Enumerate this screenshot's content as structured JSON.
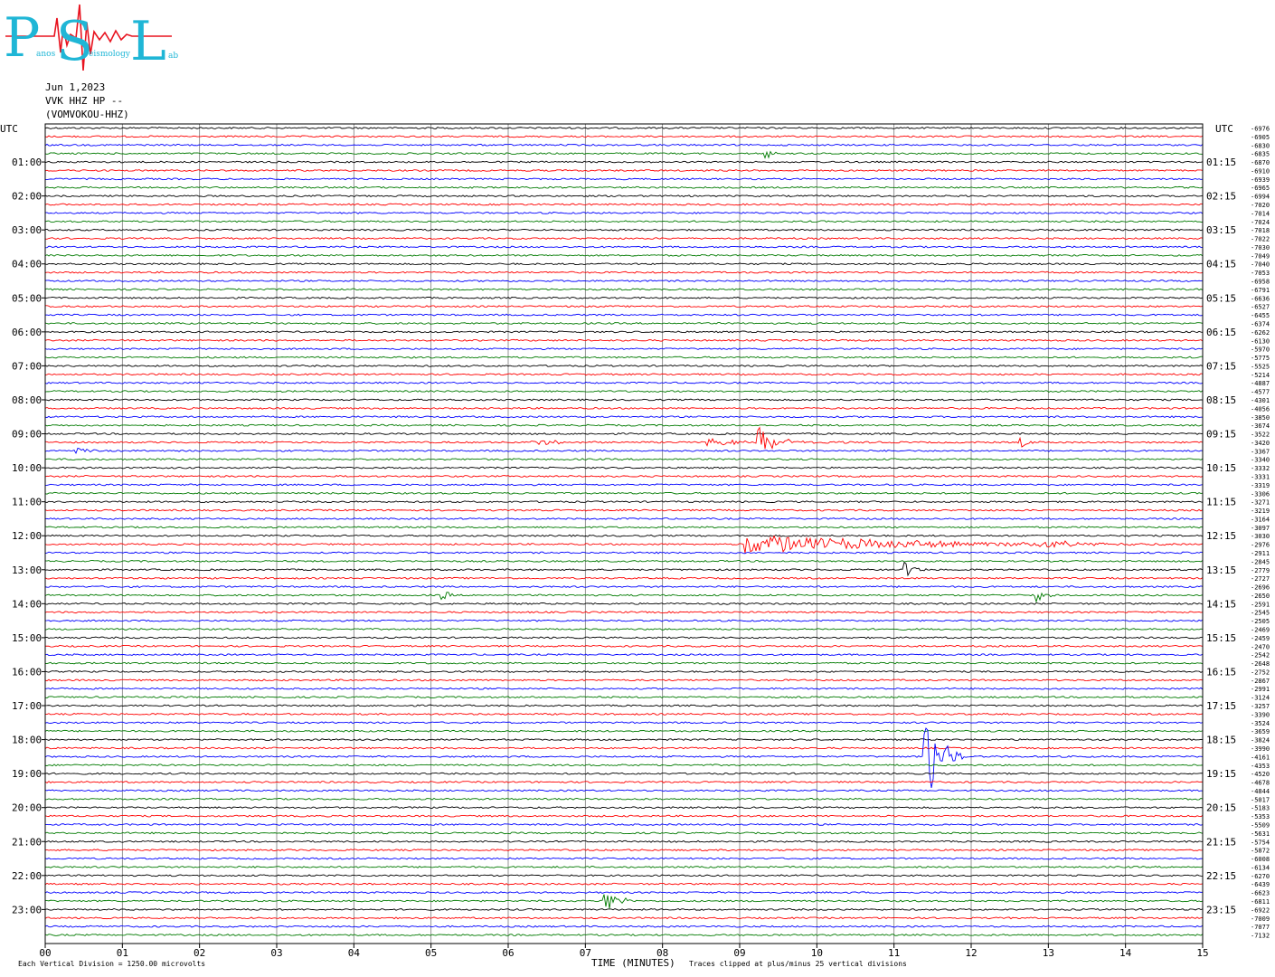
{
  "header": {
    "logo_letters": [
      "P",
      "S",
      "L"
    ],
    "logo_words": [
      "anos",
      "eismology",
      "ab"
    ],
    "date": "Jun 1,2023",
    "station": "VVK HHZ HP --",
    "station_name": "(VOMVOKOU-HHZ)"
  },
  "colors": {
    "black": "#000000",
    "red": "#ff0000",
    "blue": "#0000ff",
    "green": "#007a00",
    "logo_cyan": "#1fb6d6",
    "logo_red": "#e8131f"
  },
  "footer": {
    "scale_note": "Each Vertical Division = 1250.00 microvolts",
    "clip_note": "Traces clipped at plus/minus 25 vertical divisions"
  },
  "chart_data": {
    "type": "line",
    "title": "",
    "xlabel": "TIME (MINUTES)",
    "ylabel_left": "UTC",
    "ylabel_right": "UTC",
    "xlim": [
      0,
      15
    ],
    "x_ticks": [
      "00",
      "01",
      "02",
      "03",
      "04",
      "05",
      "06",
      "07",
      "08",
      "09",
      "10",
      "11",
      "12",
      "13",
      "14",
      "15"
    ],
    "trace_count": 96,
    "trace_color_cycle": [
      "black",
      "red",
      "blue",
      "green"
    ],
    "left_hour_labels": [
      "01:00",
      "02:00",
      "03:00",
      "04:00",
      "05:00",
      "06:00",
      "07:00",
      "08:00",
      "09:00",
      "10:00",
      "11:00",
      "12:00",
      "13:00",
      "14:00",
      "15:00",
      "16:00",
      "17:00",
      "18:00",
      "19:00",
      "20:00",
      "21:00",
      "22:00",
      "23:00"
    ],
    "right_hour_labels": [
      "01:15",
      "02:15",
      "03:15",
      "04:15",
      "05:15",
      "06:15",
      "07:15",
      "08:15",
      "09:15",
      "10:15",
      "11:15",
      "12:15",
      "13:15",
      "14:15",
      "15:15",
      "16:15",
      "17:15",
      "18:15",
      "19:15",
      "20:15",
      "21:15",
      "22:15",
      "23:15"
    ],
    "trace_offsets": [
      -6976,
      -6905,
      -6830,
      -6835,
      -6870,
      -6910,
      -6939,
      -6965,
      -6994,
      -7020,
      -7014,
      -7024,
      -7018,
      -7022,
      -7030,
      -7049,
      -7040,
      -7053,
      -6958,
      -6791,
      -6636,
      -6527,
      -6455,
      -6374,
      -6262,
      -6130,
      -5970,
      -5775,
      -5525,
      -5214,
      -4887,
      -4577,
      -4301,
      -4056,
      -3850,
      -3674,
      -3522,
      -3420,
      -3367,
      -3340,
      -3332,
      -3331,
      -3319,
      -3306,
      -3271,
      -3219,
      -3164,
      -3097,
      -3030,
      -2976,
      -2911,
      -2845,
      -2779,
      -2727,
      -2696,
      -2650,
      -2591,
      -2545,
      -2505,
      -2469,
      -2459,
      -2470,
      -2542,
      -2648,
      -2752,
      -2867,
      -2991,
      -3124,
      -3257,
      -3390,
      -3524,
      -3659,
      -3824,
      -3990,
      -4161,
      -4353,
      -4520,
      -4678,
      -4844,
      -5017,
      -5183,
      -5353,
      -5509,
      -5631,
      -5754,
      -5872,
      -6008,
      -6134,
      -6270,
      -6439,
      -6623,
      -6811,
      -6922,
      -7009,
      -7077,
      -7132
    ],
    "events": [
      {
        "trace": 3,
        "minute": 9.35,
        "amplitude": 6,
        "duration": 0.2
      },
      {
        "trace": 37,
        "minute": 9.25,
        "amplitude": 18,
        "duration": 0.5
      },
      {
        "trace": 37,
        "minute": 6.3,
        "amplitude": 3,
        "duration": 1.2
      },
      {
        "trace": 37,
        "minute": 8.6,
        "amplitude": 4,
        "duration": 2.5
      },
      {
        "trace": 37,
        "minute": 12.65,
        "amplitude": 5,
        "duration": 0.3
      },
      {
        "trace": 38,
        "minute": 0.4,
        "amplitude": 3,
        "duration": 0.4
      },
      {
        "trace": 49,
        "minute": 9.1,
        "amplitude": 11,
        "duration": 5.5
      },
      {
        "trace": 49,
        "minute": 12.9,
        "amplitude": 6,
        "duration": 1.0
      },
      {
        "trace": 52,
        "minute": 11.15,
        "amplitude": 9,
        "duration": 0.3
      },
      {
        "trace": 55,
        "minute": 5.15,
        "amplitude": 8,
        "duration": 0.2
      },
      {
        "trace": 55,
        "minute": 12.85,
        "amplitude": 8,
        "duration": 0.25
      },
      {
        "trace": 74,
        "minute": 11.4,
        "amplitude": 62,
        "duration": 0.5
      },
      {
        "trace": 91,
        "minute": 7.25,
        "amplitude": 18,
        "duration": 0.4
      }
    ]
  }
}
